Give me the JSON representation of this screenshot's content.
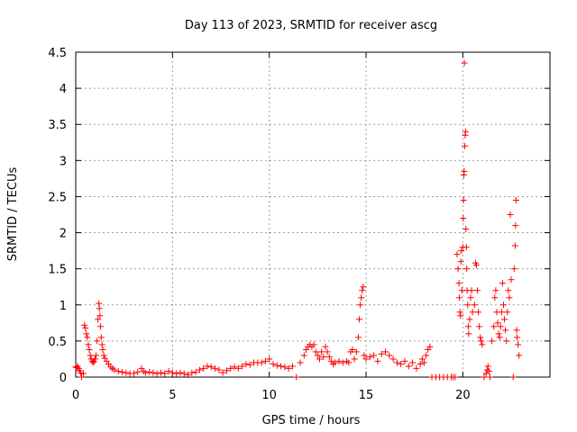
{
  "chart_data": {
    "type": "scatter",
    "title": "Day 113 of 2023, SRMTID for receiver ascg",
    "xlabel": "GPS time / hours",
    "ylabel": "SRMTID / TECUs",
    "xlim": [
      0,
      24.5
    ],
    "ylim": [
      0,
      4.5
    ],
    "x_ticks": [
      0,
      5,
      10,
      15,
      20
    ],
    "x_tick_labels": [
      "0",
      "5",
      "10",
      "15",
      "20"
    ],
    "y_ticks": [
      0,
      0.5,
      1,
      1.5,
      2,
      2.5,
      3,
      3.5,
      4,
      4.5
    ],
    "y_tick_labels": [
      "0",
      "0.5",
      "1",
      "1.5",
      "2",
      "2.5",
      "3",
      "3.5",
      "4",
      "4.5"
    ],
    "grid": true,
    "marker": "+",
    "color": "#ff0000",
    "series": [
      {
        "name": "SRMTID",
        "points": [
          [
            0.0,
            0.14
          ],
          [
            0.05,
            0.13
          ],
          [
            0.1,
            0.15
          ],
          [
            0.15,
            0.12
          ],
          [
            0.2,
            0.09
          ],
          [
            0.25,
            0.06
          ],
          [
            0.3,
            0.0
          ],
          [
            0.4,
            0.05
          ],
          [
            0.45,
            0.72
          ],
          [
            0.5,
            0.68
          ],
          [
            0.55,
            0.6
          ],
          [
            0.6,
            0.55
          ],
          [
            0.65,
            0.45
          ],
          [
            0.7,
            0.38
          ],
          [
            0.75,
            0.3
          ],
          [
            0.8,
            0.25
          ],
          [
            0.85,
            0.22
          ],
          [
            0.9,
            0.2
          ],
          [
            0.95,
            0.22
          ],
          [
            1.0,
            0.25
          ],
          [
            1.05,
            0.3
          ],
          [
            1.1,
            0.5
          ],
          [
            1.15,
            0.8
          ],
          [
            1.2,
            1.02
          ],
          [
            1.22,
            0.95
          ],
          [
            1.25,
            0.85
          ],
          [
            1.28,
            0.7
          ],
          [
            1.32,
            0.55
          ],
          [
            1.36,
            0.45
          ],
          [
            1.4,
            0.38
          ],
          [
            1.45,
            0.3
          ],
          [
            1.5,
            0.26
          ],
          [
            1.6,
            0.22
          ],
          [
            1.7,
            0.18
          ],
          [
            1.8,
            0.14
          ],
          [
            1.9,
            0.12
          ],
          [
            2.0,
            0.1
          ],
          [
            2.2,
            0.08
          ],
          [
            2.4,
            0.07
          ],
          [
            2.6,
            0.06
          ],
          [
            2.8,
            0.05
          ],
          [
            3.0,
            0.05
          ],
          [
            3.2,
            0.07
          ],
          [
            3.4,
            0.12
          ],
          [
            3.5,
            0.08
          ],
          [
            3.6,
            0.06
          ],
          [
            3.8,
            0.07
          ],
          [
            4.0,
            0.06
          ],
          [
            4.2,
            0.05
          ],
          [
            4.4,
            0.06
          ],
          [
            4.6,
            0.05
          ],
          [
            4.8,
            0.08
          ],
          [
            5.0,
            0.06
          ],
          [
            5.2,
            0.05
          ],
          [
            5.4,
            0.06
          ],
          [
            5.6,
            0.05
          ],
          [
            5.8,
            0.03
          ],
          [
            6.0,
            0.06
          ],
          [
            6.2,
            0.07
          ],
          [
            6.4,
            0.1
          ],
          [
            6.6,
            0.12
          ],
          [
            6.8,
            0.15
          ],
          [
            7.0,
            0.14
          ],
          [
            7.2,
            0.12
          ],
          [
            7.4,
            0.1
          ],
          [
            7.6,
            0.06
          ],
          [
            7.8,
            0.09
          ],
          [
            8.0,
            0.12
          ],
          [
            8.2,
            0.14
          ],
          [
            8.4,
            0.12
          ],
          [
            8.6,
            0.15
          ],
          [
            8.8,
            0.18
          ],
          [
            9.0,
            0.17
          ],
          [
            9.2,
            0.2
          ],
          [
            9.4,
            0.2
          ],
          [
            9.6,
            0.2
          ],
          [
            9.8,
            0.22
          ],
          [
            10.0,
            0.25
          ],
          [
            10.2,
            0.18
          ],
          [
            10.4,
            0.16
          ],
          [
            10.6,
            0.15
          ],
          [
            10.8,
            0.14
          ],
          [
            11.0,
            0.12
          ],
          [
            11.2,
            0.15
          ],
          [
            11.4,
            0.0
          ],
          [
            11.6,
            0.2
          ],
          [
            11.8,
            0.3
          ],
          [
            11.9,
            0.38
          ],
          [
            12.0,
            0.42
          ],
          [
            12.1,
            0.45
          ],
          [
            12.2,
            0.42
          ],
          [
            12.3,
            0.45
          ],
          [
            12.4,
            0.35
          ],
          [
            12.5,
            0.3
          ],
          [
            12.6,
            0.25
          ],
          [
            12.7,
            0.35
          ],
          [
            12.8,
            0.28
          ],
          [
            12.9,
            0.42
          ],
          [
            13.0,
            0.35
          ],
          [
            13.1,
            0.28
          ],
          [
            13.2,
            0.22
          ],
          [
            13.3,
            0.18
          ],
          [
            13.4,
            0.2
          ],
          [
            13.6,
            0.22
          ],
          [
            13.8,
            0.2
          ],
          [
            14.0,
            0.22
          ],
          [
            14.1,
            0.2
          ],
          [
            14.2,
            0.35
          ],
          [
            14.3,
            0.38
          ],
          [
            14.4,
            0.25
          ],
          [
            14.5,
            0.35
          ],
          [
            14.6,
            0.55
          ],
          [
            14.65,
            0.8
          ],
          [
            14.7,
            1.0
          ],
          [
            14.75,
            1.1
          ],
          [
            14.8,
            1.2
          ],
          [
            14.85,
            1.25
          ],
          [
            14.9,
            0.3
          ],
          [
            15.0,
            0.25
          ],
          [
            15.2,
            0.28
          ],
          [
            15.4,
            0.3
          ],
          [
            15.6,
            0.22
          ],
          [
            15.8,
            0.32
          ],
          [
            16.0,
            0.35
          ],
          [
            16.2,
            0.3
          ],
          [
            16.4,
            0.25
          ],
          [
            16.6,
            0.2
          ],
          [
            16.8,
            0.18
          ],
          [
            17.0,
            0.22
          ],
          [
            17.2,
            0.15
          ],
          [
            17.4,
            0.2
          ],
          [
            17.6,
            0.12
          ],
          [
            17.8,
            0.18
          ],
          [
            17.9,
            0.25
          ],
          [
            18.0,
            0.2
          ],
          [
            18.1,
            0.3
          ],
          [
            18.2,
            0.38
          ],
          [
            18.3,
            0.42
          ],
          [
            18.4,
            0.0
          ],
          [
            18.6,
            0.0
          ],
          [
            18.8,
            0.0
          ],
          [
            19.0,
            0.0
          ],
          [
            19.2,
            0.0
          ],
          [
            19.4,
            0.0
          ],
          [
            19.5,
            0.0
          ],
          [
            19.6,
            0.0
          ],
          [
            19.7,
            1.7
          ],
          [
            19.75,
            1.5
          ],
          [
            19.8,
            1.3
          ],
          [
            19.82,
            1.1
          ],
          [
            19.85,
            0.9
          ],
          [
            19.88,
            0.85
          ],
          [
            19.9,
            1.6
          ],
          [
            19.92,
            1.75
          ],
          [
            19.95,
            1.2
          ],
          [
            20.0,
            1.8
          ],
          [
            20.02,
            2.2
          ],
          [
            20.04,
            2.45
          ],
          [
            20.05,
            2.8
          ],
          [
            20.07,
            2.85
          ],
          [
            20.08,
            4.35
          ],
          [
            20.1,
            3.2
          ],
          [
            20.12,
            3.35
          ],
          [
            20.14,
            3.4
          ],
          [
            20.16,
            2.05
          ],
          [
            20.18,
            1.8
          ],
          [
            20.2,
            1.5
          ],
          [
            20.22,
            1.2
          ],
          [
            20.25,
            1.0
          ],
          [
            20.28,
            0.7
          ],
          [
            20.3,
            0.6
          ],
          [
            20.35,
            0.8
          ],
          [
            20.4,
            1.1
          ],
          [
            20.45,
            1.2
          ],
          [
            20.5,
            0.9
          ],
          [
            20.6,
            1.0
          ],
          [
            20.65,
            1.58
          ],
          [
            20.7,
            1.55
          ],
          [
            20.75,
            1.2
          ],
          [
            20.8,
            0.9
          ],
          [
            20.85,
            0.7
          ],
          [
            20.9,
            0.55
          ],
          [
            20.95,
            0.5
          ],
          [
            21.0,
            0.45
          ],
          [
            21.1,
            0.0
          ],
          [
            21.2,
            0.05
          ],
          [
            21.25,
            0.1
          ],
          [
            21.3,
            0.15
          ],
          [
            21.35,
            0.08
          ],
          [
            21.4,
            0.0
          ],
          [
            21.5,
            0.5
          ],
          [
            21.6,
            0.7
          ],
          [
            21.65,
            1.1
          ],
          [
            21.7,
            1.2
          ],
          [
            21.75,
            0.9
          ],
          [
            21.8,
            0.75
          ],
          [
            21.85,
            0.6
          ],
          [
            21.9,
            0.55
          ],
          [
            21.95,
            0.7
          ],
          [
            22.0,
            0.9
          ],
          [
            22.05,
            1.3
          ],
          [
            22.1,
            1.0
          ],
          [
            22.15,
            0.8
          ],
          [
            22.2,
            0.65
          ],
          [
            22.25,
            0.5
          ],
          [
            22.3,
            0.9
          ],
          [
            22.35,
            1.2
          ],
          [
            22.4,
            1.1
          ],
          [
            22.45,
            2.25
          ],
          [
            22.5,
            1.35
          ],
          [
            22.6,
            0.0
          ],
          [
            22.65,
            1.5
          ],
          [
            22.7,
            1.82
          ],
          [
            22.72,
            2.1
          ],
          [
            22.75,
            2.45
          ],
          [
            22.78,
            0.65
          ],
          [
            22.8,
            0.55
          ],
          [
            22.85,
            0.45
          ],
          [
            22.9,
            0.3
          ]
        ]
      }
    ]
  }
}
